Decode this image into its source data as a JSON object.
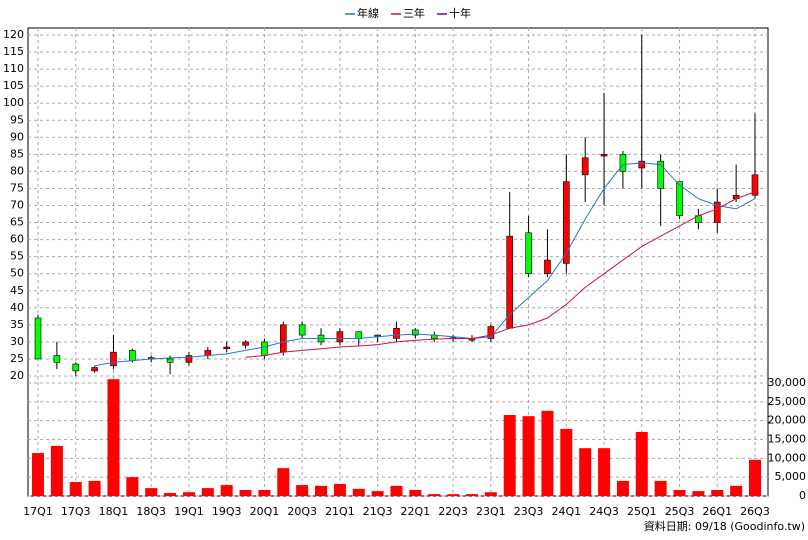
{
  "chart_data": {
    "type": "candlestick",
    "categories": [
      "17Q1",
      null,
      "17Q3",
      null,
      "18Q1",
      null,
      "18Q3",
      null,
      "19Q1",
      null,
      "19Q3",
      null,
      "20Q1",
      null,
      "20Q3",
      null,
      "21Q1",
      null,
      "21Q3",
      null,
      "22Q1",
      null,
      "22Q3",
      null,
      "23Q1",
      null,
      "23Q3",
      null,
      "24Q1",
      null,
      "24Q3",
      null,
      "25Q1",
      null,
      "25Q3",
      null,
      "26Q1",
      null,
      "26Q3"
    ],
    "open": [
      37,
      26,
      23.5,
      21.5,
      23,
      27.5,
      25,
      25,
      24,
      26,
      28,
      29,
      30,
      27,
      35,
      32,
      30,
      33,
      31.5,
      31,
      33.5,
      32,
      31.2,
      30.5,
      31,
      34,
      62,
      50,
      53,
      79,
      84.5,
      85,
      81,
      83,
      77,
      67,
      65,
      72,
      73
    ],
    "high": [
      38,
      30,
      24,
      23,
      32,
      28,
      26,
      26,
      27,
      28.5,
      30,
      30.5,
      31,
      36,
      36,
      34,
      34,
      33,
      32,
      36,
      34,
      33,
      32,
      32,
      35,
      74,
      67,
      63,
      85,
      90,
      103,
      86,
      120,
      85,
      77,
      69,
      75,
      82,
      97
    ],
    "low": [
      25,
      22,
      20,
      21,
      22,
      24,
      24,
      20.5,
      23,
      25,
      27,
      28,
      25,
      26,
      31,
      29,
      29,
      29,
      30,
      30,
      31,
      30,
      30,
      30,
      30,
      34,
      49,
      49,
      50,
      71,
      70,
      75,
      75,
      64,
      66,
      63,
      62,
      71,
      72
    ],
    "close": [
      25,
      24,
      21.5,
      22.5,
      27,
      24.5,
      25.4,
      24,
      26,
      27.5,
      28.5,
      30,
      26,
      35,
      32,
      30,
      33,
      31,
      32,
      34,
      32,
      31,
      31,
      31,
      34.5,
      61,
      50,
      54,
      77,
      84,
      85,
      80,
      83,
      75,
      67,
      65,
      71,
      73,
      79
    ],
    "up_color": "#ff0000",
    "down_color": "#00ff00",
    "series": [
      {
        "name": "年線",
        "color": "#1f77d0",
        "values": [
          null,
          null,
          null,
          23,
          24,
          24.5,
          25,
          25.3,
          25.5,
          26,
          26.5,
          27.5,
          28.5,
          30,
          31,
          31,
          31,
          31,
          31.5,
          32,
          32.3,
          32,
          31.5,
          31,
          31.5,
          38,
          43,
          48,
          56,
          66,
          75,
          82,
          82.5,
          82,
          76,
          72,
          70,
          69,
          72
        ]
      },
      {
        "name": "三年",
        "color": "#d0104f",
        "values": [
          null,
          null,
          null,
          null,
          null,
          null,
          null,
          null,
          null,
          null,
          null,
          25.5,
          26,
          27,
          27.5,
          28,
          28.5,
          28.8,
          29.2,
          30,
          30.5,
          30.8,
          31,
          31,
          32,
          34,
          35,
          37,
          41,
          46,
          50,
          54,
          58,
          61,
          64,
          67,
          69,
          72,
          74
        ]
      },
      {
        "name": "十年",
        "color": "#800080",
        "values": [
          null,
          null,
          null,
          null,
          null,
          null,
          null,
          null,
          null,
          null,
          null,
          null,
          null,
          null,
          null,
          null,
          null,
          null,
          null,
          null,
          null,
          null,
          null,
          null,
          null,
          null,
          null,
          null,
          null,
          null,
          null,
          null,
          null,
          null,
          null,
          null,
          null,
          null,
          null
        ]
      }
    ],
    "ylim": [
      20,
      120
    ],
    "yticks": [
      20,
      25,
      30,
      35,
      40,
      45,
      50,
      55,
      60,
      65,
      70,
      75,
      80,
      85,
      90,
      95,
      100,
      105,
      110,
      115,
      120
    ],
    "volume": {
      "color": "#ff0000",
      "values": [
        11400,
        13300,
        3700,
        4000,
        31000,
        5000,
        2100,
        800,
        1000,
        2100,
        2900,
        1600,
        1600,
        7400,
        2900,
        2700,
        3200,
        1900,
        1300,
        2700,
        1600,
        500,
        500,
        500,
        1000,
        21500,
        21200,
        22600,
        17800,
        12700,
        12700,
        4000,
        17000,
        4000,
        1600,
        1300,
        1600,
        2700,
        9600
      ],
      "ylim": [
        0,
        30000
      ],
      "yticks": [
        0,
        {
          "value": 5000,
          "label": "5,000"
        },
        {
          "value": 10000,
          "label": "10,000"
        },
        {
          "value": 15000,
          "label": "15,000"
        },
        {
          "value": 20000,
          "label": "20,000"
        },
        {
          "value": 25000,
          "label": "25,000"
        },
        {
          "value": 30000,
          "label": "30,000"
        }
      ]
    },
    "grid": true,
    "footnote": "資料日期: 09/18 (Goodinfo.tw)"
  }
}
